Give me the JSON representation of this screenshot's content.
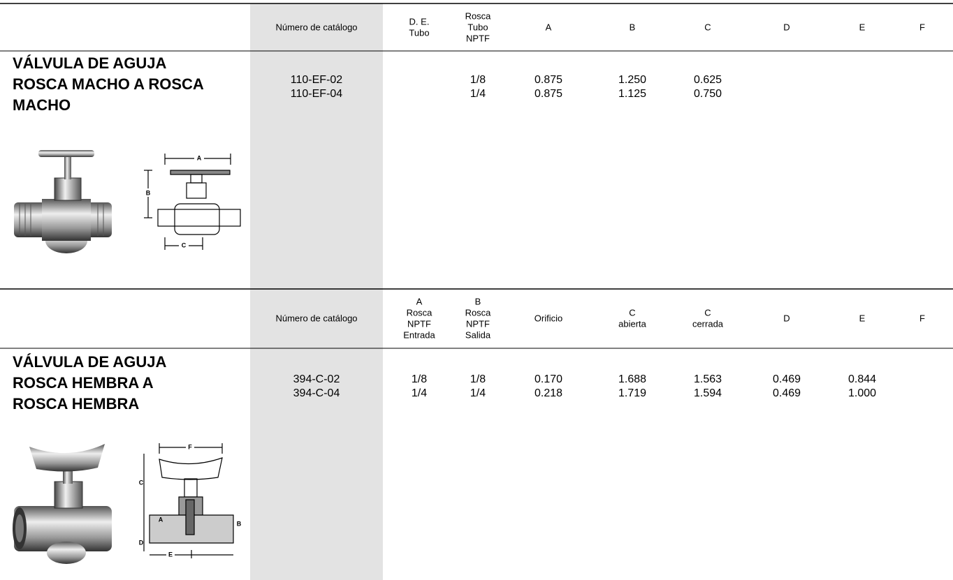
{
  "sections": [
    {
      "headers": [
        [
          "Número de catálogo"
        ],
        [
          "D. E.",
          "Tubo"
        ],
        [
          "Rosca",
          "Tubo",
          "NPTF"
        ],
        [
          "A"
        ],
        [
          "B"
        ],
        [
          "C"
        ],
        [
          "D"
        ],
        [
          "E"
        ],
        [
          "F"
        ]
      ],
      "title": [
        "VÁLVULA DE AGUJA",
        "ROSCA MACHO A ROSCA",
        "MACHO"
      ],
      "rows": [
        [
          "110-EF-02",
          null,
          "1/8",
          "0.875",
          "1.250",
          "0.625",
          null,
          null,
          null
        ],
        [
          "110-EF-04",
          null,
          "1/4",
          "0.875",
          "1.125",
          "0.750",
          null,
          null,
          null
        ]
      ],
      "diagram_labels": [
        "A",
        "B",
        "C"
      ]
    },
    {
      "headers": [
        [
          "Número de catálogo"
        ],
        [
          "A",
          "Rosca",
          "NPTF",
          "Entrada"
        ],
        [
          "B",
          "Rosca",
          "NPTF",
          "Salida"
        ],
        [
          "Orificio"
        ],
        [
          "C",
          "abierta"
        ],
        [
          "C",
          "cerrada"
        ],
        [
          "D"
        ],
        [
          "E"
        ],
        [
          "F"
        ]
      ],
      "title": [
        "VÁLVULA DE AGUJA",
        "ROSCA HEMBRA A",
        "ROSCA HEMBRA"
      ],
      "rows": [
        [
          "394-C-02",
          "1/8",
          "1/8",
          "0.170",
          "1.688",
          "1.563",
          "0.469",
          "0.844",
          null
        ],
        [
          "394-C-04",
          "1/4",
          "1/4",
          "0.218",
          "1.719",
          "1.594",
          "0.469",
          "1.000",
          null
        ]
      ],
      "diagram_labels": [
        "F",
        "C",
        "A",
        "B",
        "D",
        "E"
      ]
    }
  ]
}
